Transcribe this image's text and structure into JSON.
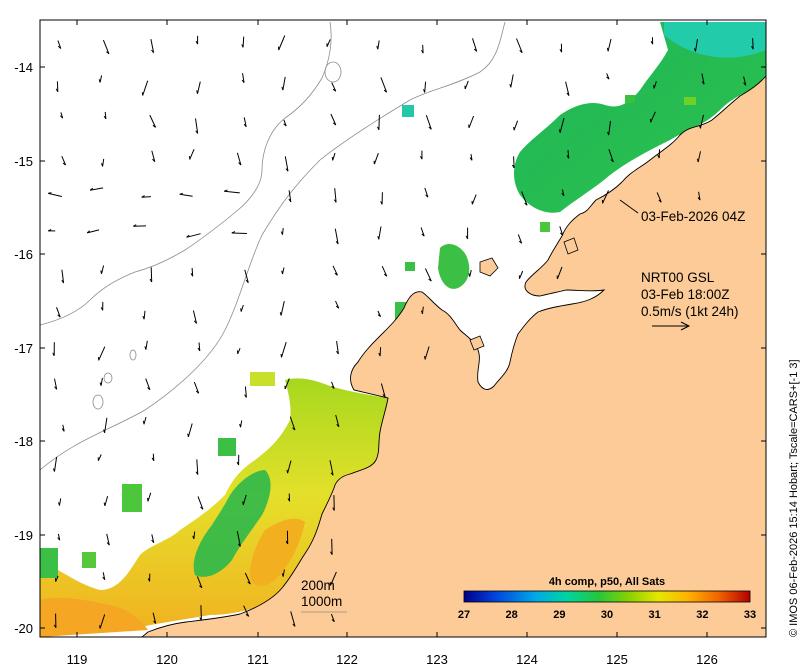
{
  "map": {
    "product": "NRT00 GSL",
    "product_time": "03-Feb 18:00Z",
    "vector_scale": "0.5m/s (1kt 24h)",
    "swath_time": "03-Feb-2026 04Z",
    "credit": "© IMOS 06-Feb-2026 15:14 Hobart; Tscale=CARS+[-1 3]",
    "isobaths": [
      "200m",
      "1000m"
    ],
    "lat_ticks": [
      "-14",
      "-15",
      "-16",
      "-17",
      "-18",
      "-19",
      "-20"
    ],
    "lon_ticks": [
      "119",
      "120",
      "121",
      "122",
      "123",
      "124",
      "125",
      "126"
    ],
    "colors": {
      "land": "#fccb98",
      "ocean_nodata": "#ffffff",
      "coast": "#000000",
      "isobath": "#8c8c8c"
    }
  },
  "colorbar": {
    "title": "4h comp, p50, All Sats",
    "ticks": [
      "27",
      "28",
      "29",
      "30",
      "31",
      "32",
      "33"
    ],
    "range": [
      27,
      33
    ],
    "colors": [
      "#00008b",
      "#0044dd",
      "#00a8e8",
      "#00d4a0",
      "#26c63c",
      "#8bd200",
      "#e6e600",
      "#ffb400",
      "#f06400",
      "#b40000"
    ]
  }
}
